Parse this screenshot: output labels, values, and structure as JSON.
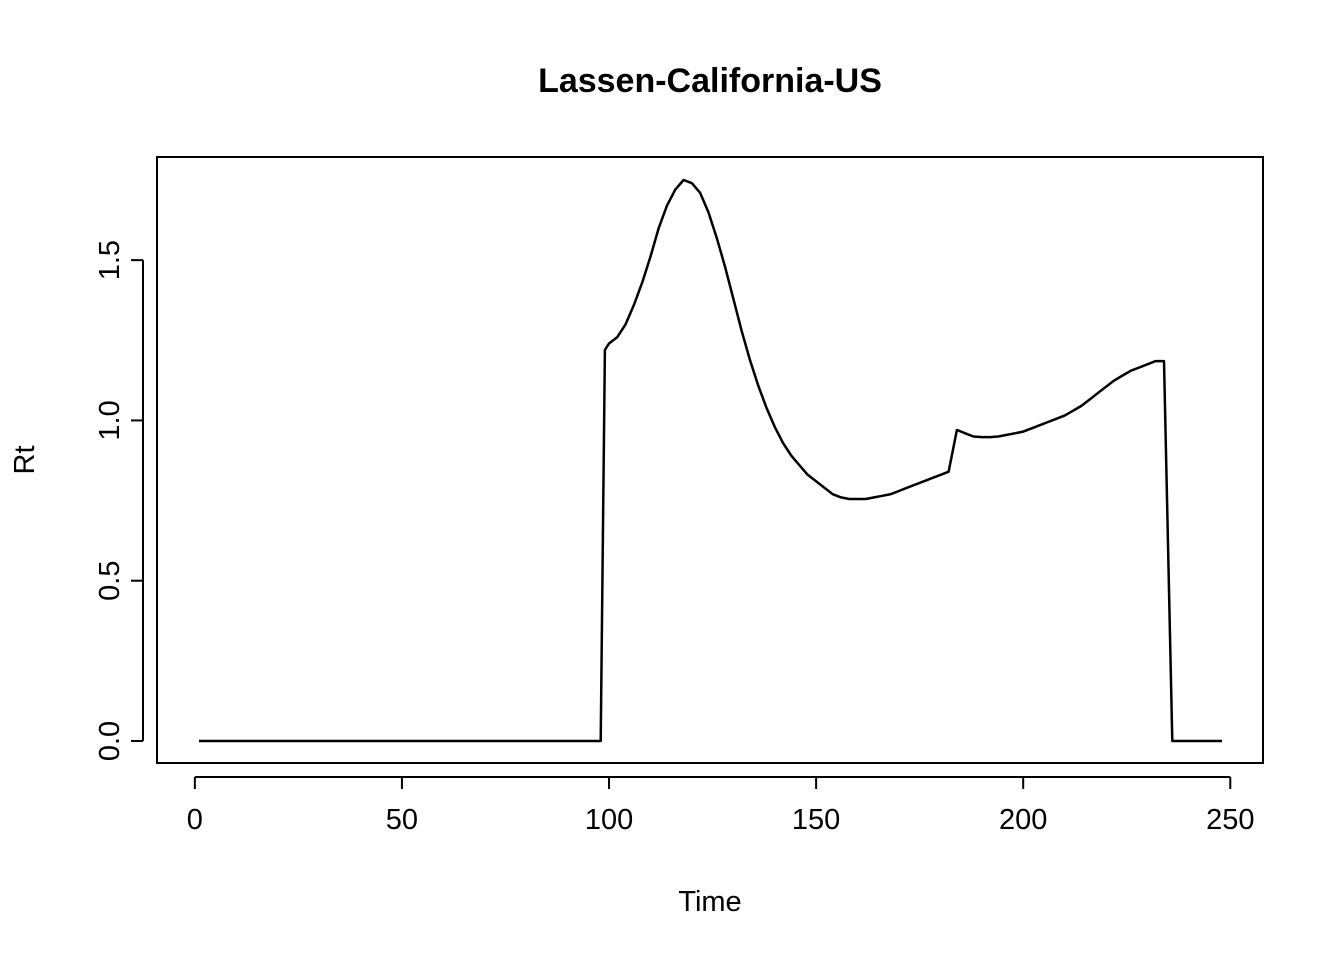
{
  "chart_data": {
    "type": "line",
    "title": "Lassen-California-US",
    "xlabel": "Time",
    "ylabel": "Rt",
    "xlim": [
      1,
      248
    ],
    "ylim": [
      0,
      1.75
    ],
    "x_ticks": [
      0,
      50,
      100,
      150,
      200,
      250
    ],
    "y_ticks": [
      0.0,
      0.5,
      1.0,
      1.5
    ],
    "x_tick_labels": [
      "0",
      "50",
      "100",
      "150",
      "200",
      "250"
    ],
    "y_tick_labels": [
      "0.0",
      "0.5",
      "1.0",
      "1.5"
    ],
    "grid": false,
    "line_color": "#000000",
    "series": [
      {
        "x": [
          1,
          98,
          99,
          100,
          102,
          104,
          106,
          108,
          110,
          112,
          114,
          116,
          118,
          120,
          122,
          124,
          126,
          128,
          130,
          132,
          134,
          136,
          138,
          140,
          142,
          144,
          146,
          148,
          150,
          152,
          154,
          156,
          158,
          160,
          162,
          164,
          166,
          168,
          170,
          172,
          174,
          176,
          178,
          180,
          182,
          184,
          185,
          186,
          188,
          190,
          192,
          194,
          196,
          198,
          200,
          202,
          204,
          206,
          208,
          210,
          212,
          214,
          216,
          218,
          220,
          222,
          224,
          226,
          228,
          230,
          232,
          234,
          236,
          237,
          238,
          248
        ],
        "y": [
          0,
          0,
          1.22,
          1.24,
          1.26,
          1.3,
          1.36,
          1.43,
          1.51,
          1.6,
          1.67,
          1.72,
          1.75,
          1.74,
          1.71,
          1.65,
          1.57,
          1.48,
          1.38,
          1.28,
          1.19,
          1.11,
          1.04,
          0.98,
          0.93,
          0.89,
          0.86,
          0.83,
          0.81,
          0.79,
          0.77,
          0.76,
          0.755,
          0.755,
          0.755,
          0.76,
          0.765,
          0.77,
          0.78,
          0.79,
          0.8,
          0.81,
          0.82,
          0.83,
          0.84,
          0.97,
          0.965,
          0.96,
          0.95,
          0.948,
          0.948,
          0.95,
          0.955,
          0.96,
          0.965,
          0.975,
          0.985,
          0.995,
          1.005,
          1.015,
          1.03,
          1.045,
          1.065,
          1.085,
          1.105,
          1.125,
          1.14,
          1.155,
          1.165,
          1.175,
          1.185,
          1.185,
          0,
          0,
          0,
          0
        ]
      }
    ]
  }
}
